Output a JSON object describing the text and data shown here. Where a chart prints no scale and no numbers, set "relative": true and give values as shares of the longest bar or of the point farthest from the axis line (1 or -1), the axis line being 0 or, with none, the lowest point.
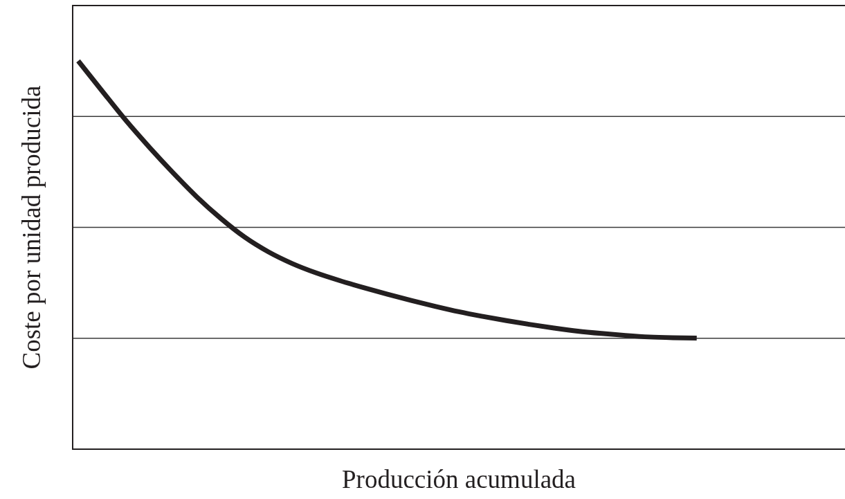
{
  "chart_data": {
    "type": "line",
    "xlabel": "Producción acumulada",
    "ylabel": "Coste por unidad producida",
    "relative": true,
    "grid": "y",
    "color": "#231f20",
    "categories": [
      null,
      null,
      null,
      null,
      null,
      null,
      null,
      null,
      null,
      null,
      null,
      null,
      null,
      null,
      null,
      null,
      null,
      null,
      null,
      null,
      null,
      null,
      null,
      null,
      null,
      null,
      null,
      null,
      null,
      null,
      null,
      null,
      null
    ],
    "values": [
      1.0,
      0.923,
      0.847,
      0.777,
      0.711,
      0.649,
      0.594,
      0.546,
      0.508,
      0.478,
      0.454,
      0.434,
      0.416,
      0.399,
      0.383,
      0.368,
      0.354,
      0.342,
      0.331,
      0.321,
      0.312,
      0.304,
      0.298,
      0.293,
      0.289,
      0.287,
      0.286,
      null,
      null,
      null,
      null,
      null,
      null
    ]
  }
}
